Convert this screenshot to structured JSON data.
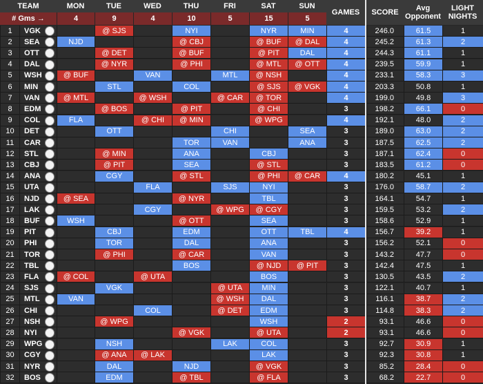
{
  "header": {
    "team": "TEAM",
    "gms_label": "# Gms →",
    "days": [
      {
        "label": "MON",
        "count": "4"
      },
      {
        "label": "TUE",
        "count": "9"
      },
      {
        "label": "WED",
        "count": "4"
      },
      {
        "label": "THU",
        "count": "10"
      },
      {
        "label": "FRI",
        "count": "5"
      },
      {
        "label": "SAT",
        "count": "15"
      },
      {
        "label": "SUN",
        "count": "5"
      }
    ],
    "games": "GAMES",
    "score": "SCORE",
    "avg_opponent": "Avg Opponent",
    "light_nights": "LIGHT NIGHTS"
  },
  "colors": {
    "home": "#5b8fe6",
    "away": "#c8352e",
    "empty": "#2d2d2d",
    "games_4": "#5b8fe6",
    "games_3": "#2d2d2d",
    "games_2": "#c8352e"
  },
  "chart_data": {
    "type": "table",
    "columns": [
      "#",
      "TEAM",
      "MON",
      "TUE",
      "WED",
      "THU",
      "FRI",
      "SAT",
      "SUN",
      "GAMES",
      "SCORE",
      "Avg Opponent",
      "LIGHT NIGHTS"
    ],
    "rows": [
      {
        "rank": "1",
        "team": "VGK",
        "games": [
          "",
          "@ SJS",
          "",
          "NYI",
          "",
          "NYR",
          "MIN"
        ],
        "gp": "4",
        "score": "246.0",
        "opp": "61.5",
        "light": "1",
        "opp_color": "#5b8fe6",
        "light_color": "#2d2d2d"
      },
      {
        "rank": "2",
        "team": "SEA",
        "games": [
          "NJD",
          "",
          "",
          "@ CBJ",
          "",
          "@ BUF",
          "@ DAL"
        ],
        "gp": "4",
        "score": "245.2",
        "opp": "61.3",
        "light": "2",
        "opp_color": "#5b8fe6",
        "light_color": "#5b8fe6"
      },
      {
        "rank": "3",
        "team": "OTT",
        "games": [
          "",
          "@ DET",
          "",
          "@ BUF",
          "",
          "@ PIT",
          "DAL"
        ],
        "gp": "4",
        "score": "244.3",
        "opp": "61.1",
        "light": "1",
        "opp_color": "#5b8fe6",
        "light_color": "#2d2d2d"
      },
      {
        "rank": "4",
        "team": "DAL",
        "games": [
          "",
          "@ NYR",
          "",
          "@ PHI",
          "",
          "@ MTL",
          "@ OTT"
        ],
        "gp": "4",
        "score": "239.5",
        "opp": "59.9",
        "light": "1",
        "opp_color": "#5b8fe6",
        "light_color": "#2d2d2d"
      },
      {
        "rank": "5",
        "team": "WSH",
        "games": [
          "@ BUF",
          "",
          "VAN",
          "",
          "MTL",
          "@ NSH",
          ""
        ],
        "gp": "4",
        "score": "233.1",
        "opp": "58.3",
        "light": "3",
        "opp_color": "#5b8fe6",
        "light_color": "#5b8fe6"
      },
      {
        "rank": "6",
        "team": "MIN",
        "games": [
          "",
          "STL",
          "",
          "COL",
          "",
          "@ SJS",
          "@ VGK"
        ],
        "gp": "4",
        "score": "203.3",
        "opp": "50.8",
        "light": "1",
        "opp_color": "#2d2d2d",
        "light_color": "#2d2d2d"
      },
      {
        "rank": "7",
        "team": "VAN",
        "games": [
          "@ MTL",
          "",
          "@ WSH",
          "",
          "@ CAR",
          "@ TOR",
          ""
        ],
        "gp": "4",
        "score": "199.0",
        "opp": "49.8",
        "light": "3",
        "opp_color": "#2d2d2d",
        "light_color": "#5b8fe6"
      },
      {
        "rank": "8",
        "team": "EDM",
        "games": [
          "",
          "@ BOS",
          "",
          "@ PIT",
          "",
          "@ CHI",
          ""
        ],
        "gp": "3",
        "score": "198.2",
        "opp": "66.1",
        "light": "0",
        "opp_color": "#5b8fe6",
        "light_color": "#c8352e"
      },
      {
        "rank": "9",
        "team": "COL",
        "games": [
          "FLA",
          "",
          "@ CHI",
          "@ MIN",
          "",
          "@ WPG",
          ""
        ],
        "gp": "4",
        "score": "192.1",
        "opp": "48.0",
        "light": "2",
        "opp_color": "#2d2d2d",
        "light_color": "#5b8fe6"
      },
      {
        "rank": "10",
        "team": "DET",
        "games": [
          "",
          "OTT",
          "",
          "",
          "CHI",
          "",
          "SEA"
        ],
        "gp": "3",
        "score": "189.0",
        "opp": "63.0",
        "light": "2",
        "opp_color": "#5b8fe6",
        "light_color": "#5b8fe6"
      },
      {
        "rank": "11",
        "team": "CAR",
        "games": [
          "",
          "",
          "",
          "TOR",
          "VAN",
          "",
          "ANA"
        ],
        "gp": "3",
        "score": "187.5",
        "opp": "62.5",
        "light": "2",
        "opp_color": "#5b8fe6",
        "light_color": "#5b8fe6"
      },
      {
        "rank": "12",
        "team": "STL",
        "games": [
          "",
          "@ MIN",
          "",
          "ANA",
          "",
          "CBJ",
          ""
        ],
        "gp": "3",
        "score": "187.1",
        "opp": "62.4",
        "light": "0",
        "opp_color": "#5b8fe6",
        "light_color": "#c8352e"
      },
      {
        "rank": "13",
        "team": "CBJ",
        "games": [
          "",
          "@ PIT",
          "",
          "SEA",
          "",
          "@ STL",
          ""
        ],
        "gp": "3",
        "score": "183.5",
        "opp": "61.2",
        "light": "0",
        "opp_color": "#5b8fe6",
        "light_color": "#c8352e"
      },
      {
        "rank": "14",
        "team": "ANA",
        "games": [
          "",
          "CGY",
          "",
          "@ STL",
          "",
          "@ PHI",
          "@ CAR"
        ],
        "gp": "4",
        "score": "180.2",
        "opp": "45.1",
        "light": "1",
        "opp_color": "#2d2d2d",
        "light_color": "#2d2d2d"
      },
      {
        "rank": "15",
        "team": "UTA",
        "games": [
          "",
          "",
          "FLA",
          "",
          "SJS",
          "NYI",
          ""
        ],
        "gp": "3",
        "score": "176.0",
        "opp": "58.7",
        "light": "2",
        "opp_color": "#5b8fe6",
        "light_color": "#5b8fe6"
      },
      {
        "rank": "16",
        "team": "NJD",
        "games": [
          "@ SEA",
          "",
          "",
          "@ NYR",
          "",
          "TBL",
          ""
        ],
        "gp": "3",
        "score": "164.1",
        "opp": "54.7",
        "light": "1",
        "opp_color": "#2d2d2d",
        "light_color": "#2d2d2d"
      },
      {
        "rank": "17",
        "team": "LAK",
        "games": [
          "",
          "",
          "CGY",
          "",
          "@ WPG",
          "@ CGY",
          ""
        ],
        "gp": "3",
        "score": "159.5",
        "opp": "53.2",
        "light": "2",
        "opp_color": "#2d2d2d",
        "light_color": "#5b8fe6"
      },
      {
        "rank": "18",
        "team": "BUF",
        "games": [
          "WSH",
          "",
          "",
          "@ OTT",
          "",
          "SEA",
          ""
        ],
        "gp": "3",
        "score": "158.6",
        "opp": "52.9",
        "light": "1",
        "opp_color": "#2d2d2d",
        "light_color": "#2d2d2d"
      },
      {
        "rank": "19",
        "team": "PIT",
        "games": [
          "",
          "CBJ",
          "",
          "EDM",
          "",
          "OTT",
          "TBL"
        ],
        "gp": "4",
        "score": "156.7",
        "opp": "39.2",
        "light": "1",
        "opp_color": "#c8352e",
        "light_color": "#2d2d2d"
      },
      {
        "rank": "20",
        "team": "PHI",
        "games": [
          "",
          "TOR",
          "",
          "DAL",
          "",
          "ANA",
          ""
        ],
        "gp": "3",
        "score": "156.2",
        "opp": "52.1",
        "light": "0",
        "opp_color": "#2d2d2d",
        "light_color": "#c8352e"
      },
      {
        "rank": "21",
        "team": "TOR",
        "games": [
          "",
          "@ PHI",
          "",
          "@ CAR",
          "",
          "VAN",
          ""
        ],
        "gp": "3",
        "score": "143.2",
        "opp": "47.7",
        "light": "0",
        "opp_color": "#2d2d2d",
        "light_color": "#c8352e"
      },
      {
        "rank": "22",
        "team": "TBL",
        "games": [
          "",
          "",
          "",
          "BOS",
          "",
          "@ NJD",
          "@ PIT"
        ],
        "gp": "3",
        "score": "142.4",
        "opp": "47.5",
        "light": "1",
        "opp_color": "#2d2d2d",
        "light_color": "#2d2d2d"
      },
      {
        "rank": "23",
        "team": "FLA",
        "games": [
          "@ COL",
          "",
          "@ UTA",
          "",
          "",
          "BOS",
          ""
        ],
        "gp": "3",
        "score": "130.5",
        "opp": "43.5",
        "light": "2",
        "opp_color": "#2d2d2d",
        "light_color": "#5b8fe6"
      },
      {
        "rank": "24",
        "team": "SJS",
        "games": [
          "",
          "VGK",
          "",
          "",
          "@ UTA",
          "MIN",
          ""
        ],
        "gp": "3",
        "score": "122.1",
        "opp": "40.7",
        "light": "1",
        "opp_color": "#2d2d2d",
        "light_color": "#2d2d2d"
      },
      {
        "rank": "25",
        "team": "MTL",
        "games": [
          "VAN",
          "",
          "",
          "",
          "@ WSH",
          "DAL",
          ""
        ],
        "gp": "3",
        "score": "116.1",
        "opp": "38.7",
        "light": "2",
        "opp_color": "#c8352e",
        "light_color": "#5b8fe6"
      },
      {
        "rank": "26",
        "team": "CHI",
        "games": [
          "",
          "",
          "COL",
          "",
          "@ DET",
          "EDM",
          ""
        ],
        "gp": "3",
        "score": "114.8",
        "opp": "38.3",
        "light": "2",
        "opp_color": "#c8352e",
        "light_color": "#5b8fe6"
      },
      {
        "rank": "27",
        "team": "NSH",
        "games": [
          "",
          "@ WPG",
          "",
          "",
          "",
          "WSH",
          ""
        ],
        "gp": "2",
        "score": "93.1",
        "opp": "46.6",
        "light": "0",
        "opp_color": "#2d2d2d",
        "light_color": "#c8352e"
      },
      {
        "rank": "28",
        "team": "NYI",
        "games": [
          "",
          "",
          "",
          "@ VGK",
          "",
          "@ UTA",
          ""
        ],
        "gp": "2",
        "score": "93.1",
        "opp": "46.6",
        "light": "0",
        "opp_color": "#2d2d2d",
        "light_color": "#c8352e"
      },
      {
        "rank": "29",
        "team": "WPG",
        "games": [
          "",
          "NSH",
          "",
          "",
          "LAK",
          "COL",
          ""
        ],
        "gp": "3",
        "score": "92.7",
        "opp": "30.9",
        "light": "1",
        "opp_color": "#c8352e",
        "light_color": "#2d2d2d"
      },
      {
        "rank": "30",
        "team": "CGY",
        "games": [
          "",
          "@ ANA",
          "@ LAK",
          "",
          "",
          "LAK",
          ""
        ],
        "gp": "3",
        "score": "92.3",
        "opp": "30.8",
        "light": "1",
        "opp_color": "#c8352e",
        "light_color": "#2d2d2d"
      },
      {
        "rank": "31",
        "team": "NYR",
        "games": [
          "",
          "DAL",
          "",
          "NJD",
          "",
          "@ VGK",
          ""
        ],
        "gp": "3",
        "score": "85.2",
        "opp": "28.4",
        "light": "0",
        "opp_color": "#c8352e",
        "light_color": "#c8352e"
      },
      {
        "rank": "32",
        "team": "BOS",
        "games": [
          "",
          "EDM",
          "",
          "@ TBL",
          "",
          "@ FLA",
          ""
        ],
        "gp": "3",
        "score": "68.2",
        "opp": "22.7",
        "light": "0",
        "opp_color": "#c8352e",
        "light_color": "#c8352e"
      }
    ]
  }
}
